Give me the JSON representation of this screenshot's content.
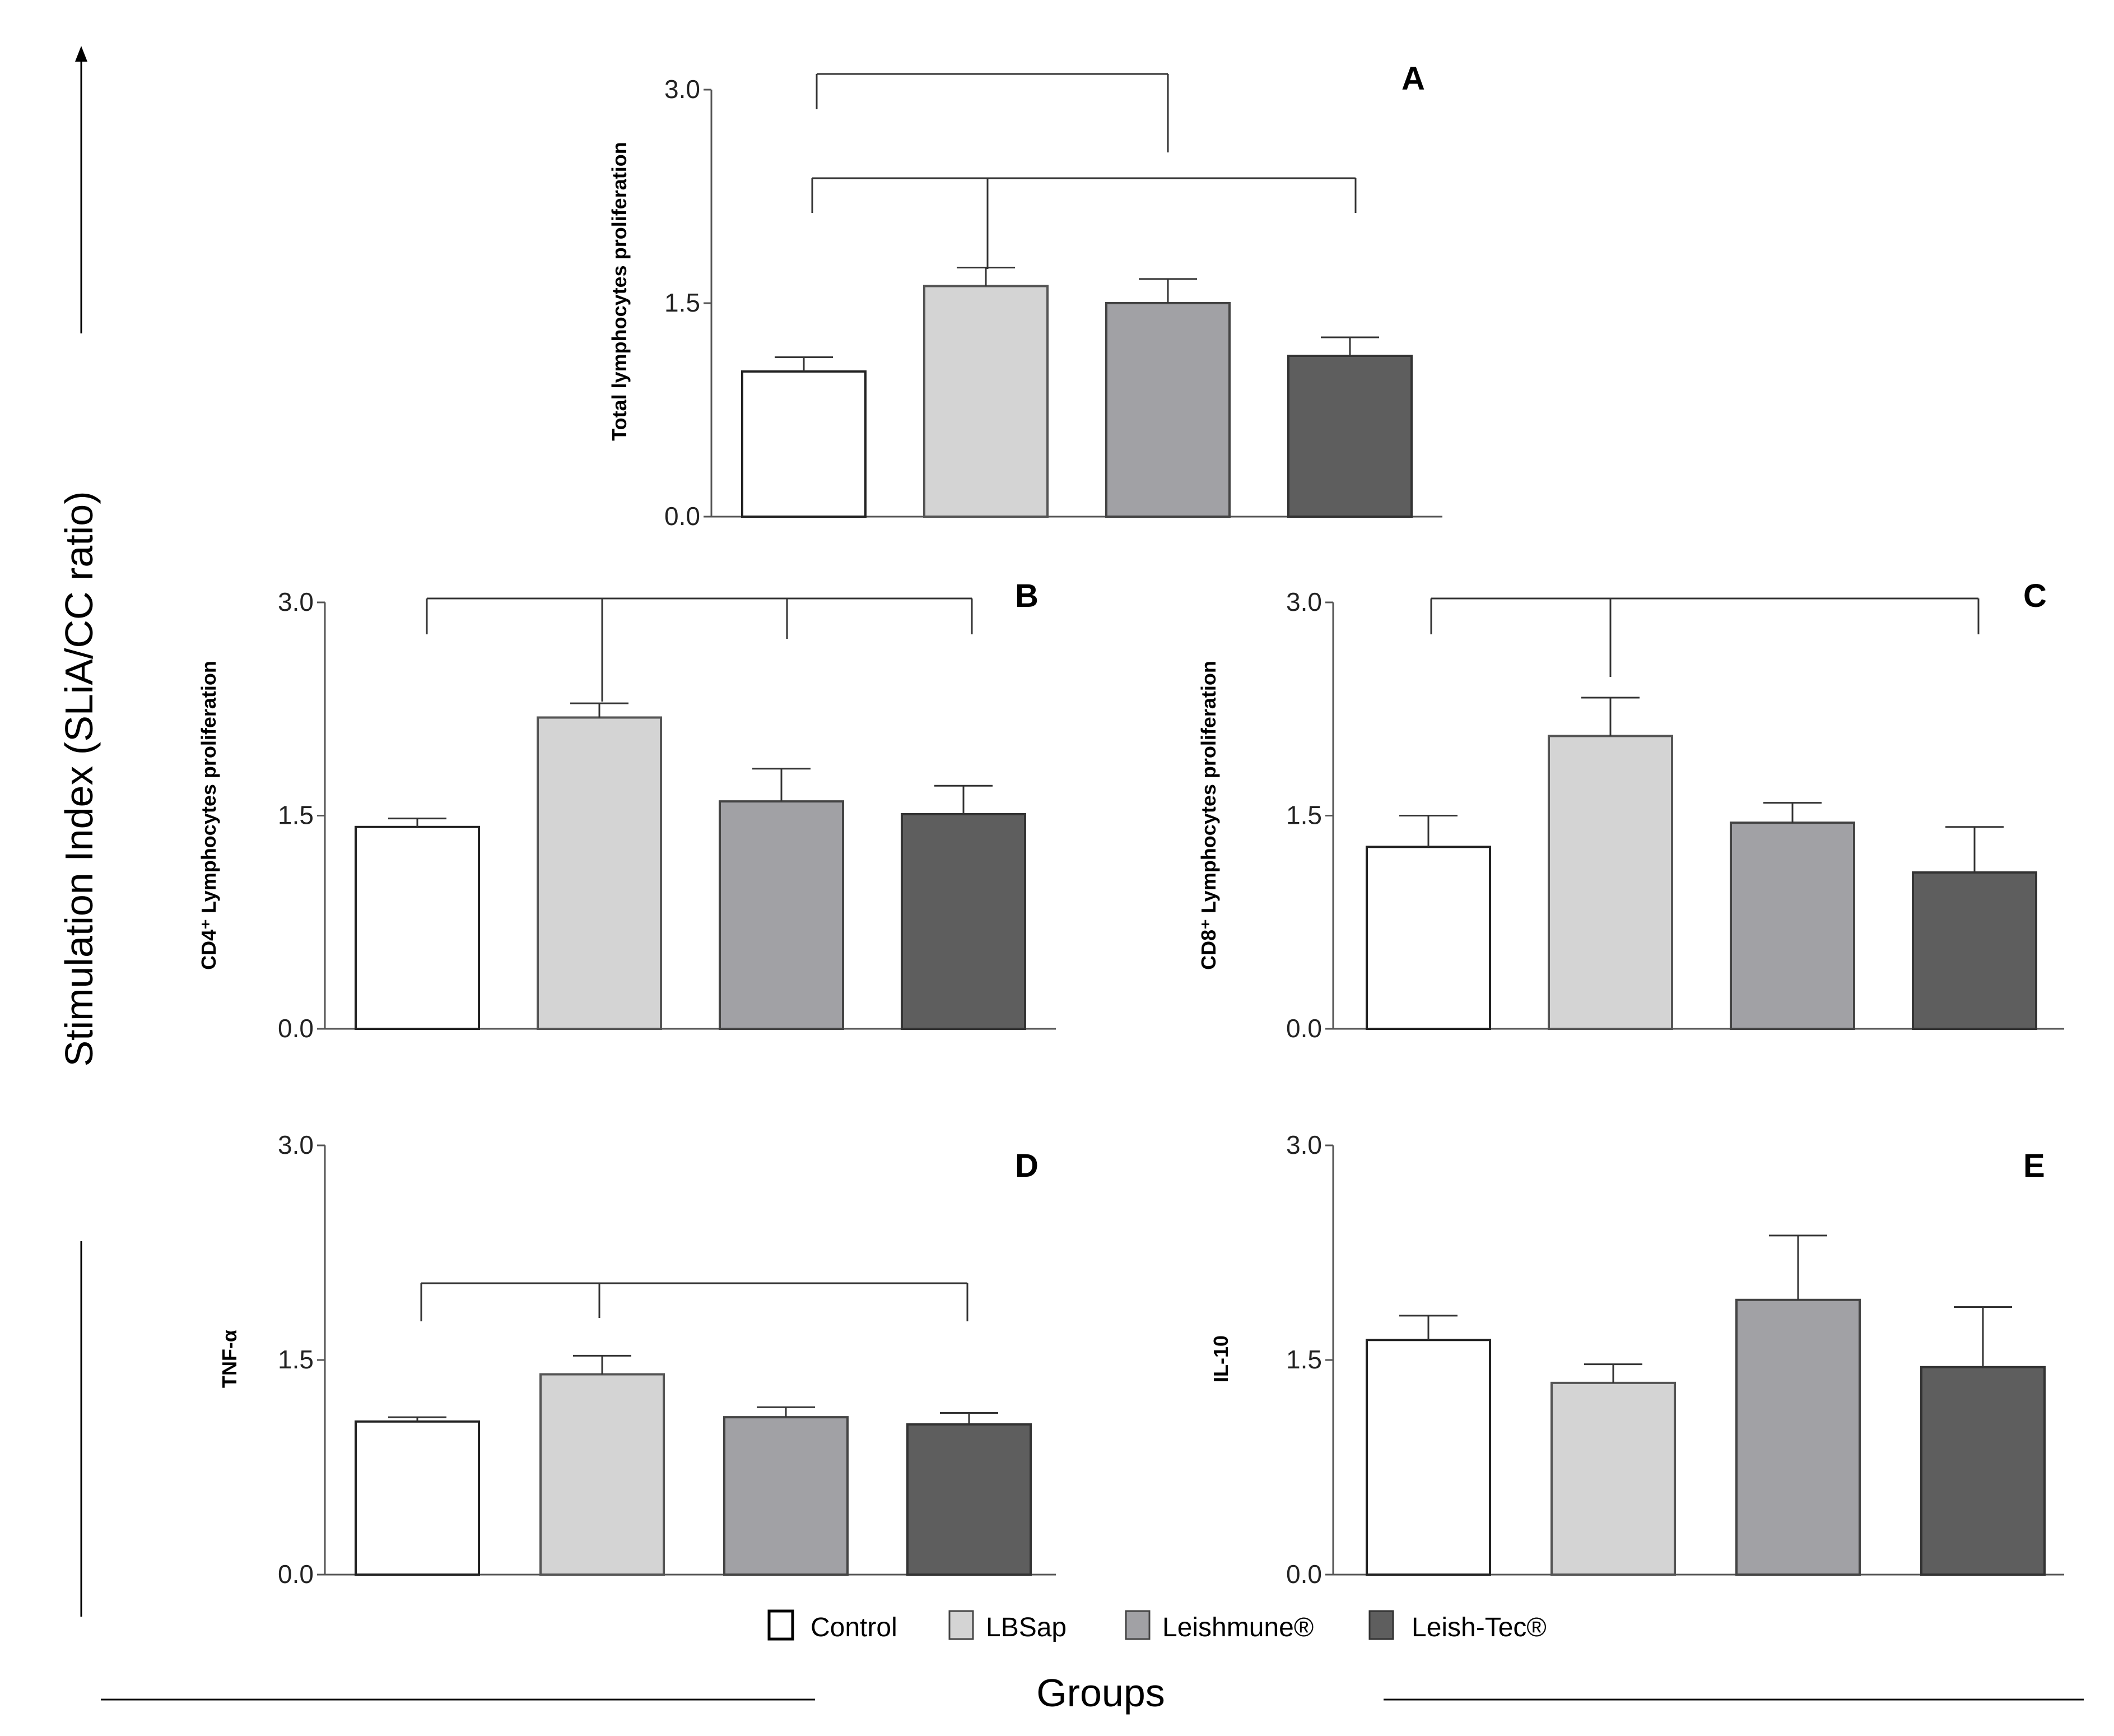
{
  "global": {
    "y_label": "Stimulation Index (SLiA/CC ratio)",
    "x_label": "Groups"
  },
  "legend": [
    {
      "name": "Control",
      "color": "#ffffff"
    },
    {
      "name": "LBSap",
      "color": "#d4d4d4"
    },
    {
      "name": "Leishmune®",
      "color": "#a1a1a5"
    },
    {
      "name": "Leish-Tec®",
      "color": "#5e5e5e"
    }
  ],
  "chart_data": [
    {
      "type": "bar",
      "panel": "A",
      "ylabel": "Total lymphocytes proliferation",
      "categories": [
        "Control",
        "LBSap",
        "Leishmune®",
        "Leish-Tec®"
      ],
      "values": [
        1.02,
        1.62,
        1.5,
        1.13
      ],
      "errors": [
        0.1,
        0.13,
        0.17,
        0.13
      ],
      "ylim": [
        0,
        3.0
      ],
      "yticks": [
        "0.0",
        "1.5",
        "3.0"
      ]
    },
    {
      "type": "bar",
      "panel": "B",
      "ylabel": "CD4⁺ Lymphocytes proliferation",
      "categories": [
        "Control",
        "LBSap",
        "Leishmune®",
        "Leish-Tec®"
      ],
      "values": [
        1.42,
        2.19,
        1.6,
        1.51
      ],
      "errors": [
        0.06,
        0.1,
        0.23,
        0.2
      ],
      "ylim": [
        0,
        3.0
      ],
      "yticks": [
        "0.0",
        "1.5",
        "3.0"
      ]
    },
    {
      "type": "bar",
      "panel": "C",
      "ylabel": "CD8⁺ Lymphocytes proliferation",
      "categories": [
        "Control",
        "LBSap",
        "Leishmune®",
        "Leish-Tec®"
      ],
      "values": [
        1.28,
        2.06,
        1.45,
        1.1
      ],
      "errors": [
        0.22,
        0.27,
        0.14,
        0.32
      ],
      "ylim": [
        0,
        3.0
      ],
      "yticks": [
        "0.0",
        "1.5",
        "3.0"
      ]
    },
    {
      "type": "bar",
      "panel": "D",
      "ylabel": "TNF-α",
      "categories": [
        "Control",
        "LBSap",
        "Leishmune®",
        "Leish-Tec®"
      ],
      "values": [
        1.07,
        1.4,
        1.1,
        1.05
      ],
      "errors": [
        0.03,
        0.13,
        0.07,
        0.08
      ],
      "ylim": [
        0,
        3.0
      ],
      "yticks": [
        "0.0",
        "1.5",
        "3.0"
      ]
    },
    {
      "type": "bar",
      "panel": "E",
      "ylabel": "IL-10",
      "categories": [
        "Control",
        "LBSap",
        "Leishmune®",
        "Leish-Tec®"
      ],
      "values": [
        1.64,
        1.34,
        1.92,
        1.45
      ],
      "errors": [
        0.17,
        0.13,
        0.45,
        0.42
      ],
      "ylim": [
        0,
        3.0
      ],
      "yticks": [
        "0.0",
        "1.5",
        "3.0"
      ]
    }
  ]
}
